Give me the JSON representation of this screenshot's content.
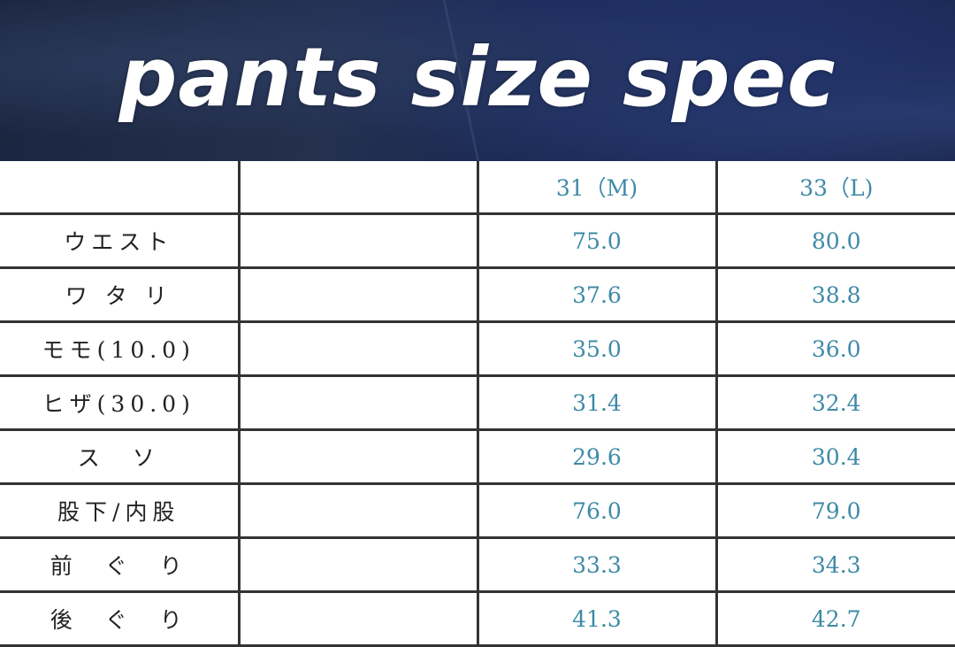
{
  "title": "pants size spec",
  "colors": {
    "value_text": "#3d8aa6",
    "banner": "#1d2a55"
  },
  "table": {
    "headers": [
      "",
      "",
      "31（M)",
      "33（L)"
    ],
    "rows": [
      {
        "label": "ウエスト",
        "m": "75.0",
        "l": "80.0"
      },
      {
        "label": "ワ タ リ",
        "m": "37.6",
        "l": "38.8"
      },
      {
        "label": "モモ(10.0)",
        "m": "35.0",
        "l": "36.0"
      },
      {
        "label": "ヒザ(30.0)",
        "m": "31.4",
        "l": "32.4"
      },
      {
        "label": "ス　ソ",
        "m": "29.6",
        "l": "30.4"
      },
      {
        "label": "股下/内股",
        "m": "76.0",
        "l": "79.0"
      },
      {
        "label": "前　ぐ　り",
        "m": "33.3",
        "l": "34.3"
      },
      {
        "label": "後　ぐ　り",
        "m": "41.3",
        "l": "42.7"
      }
    ]
  }
}
